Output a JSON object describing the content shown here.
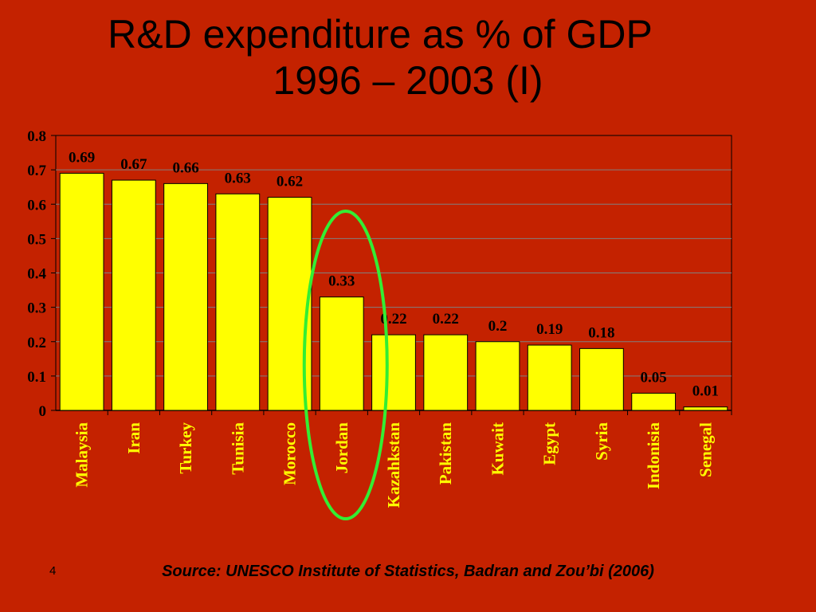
{
  "slide": {
    "title_line1": "R&D expenditure as % of GDP",
    "title_line2": "1996 – 2003  (I)",
    "slide_number": "4",
    "source": "Source: UNESCO Institute of Statistics, Badran and Zou’bi (2006)"
  },
  "colors": {
    "background": "#C42200",
    "bar_fill": "#FFFF00",
    "plot_area": "#C42200",
    "highlight_ellipse": "#33EE33",
    "category_label": "#FFFF00",
    "value_label": "#000000"
  },
  "chart_data": {
    "type": "bar",
    "title": "",
    "xlabel": "",
    "ylabel": "",
    "ylim": [
      0,
      0.8
    ],
    "yticks": [
      "0",
      "0.1",
      "0.2",
      "0.3",
      "0.4",
      "0.5",
      "0.6",
      "0.7",
      "0.8"
    ],
    "grid": true,
    "categories": [
      "Malaysia",
      "Iran",
      "Turkey",
      "Tunisia",
      "Morocco",
      "Jordan",
      "Kazahkstan",
      "Pakistan",
      "Kuwait",
      "Egypt",
      "Syria",
      "Indonisia",
      "Senegal"
    ],
    "values": [
      0.69,
      0.67,
      0.66,
      0.63,
      0.62,
      0.33,
      0.22,
      0.22,
      0.2,
      0.19,
      0.18,
      0.05,
      0.01
    ],
    "value_labels": [
      "0.69",
      "0.67",
      "0.66",
      "0.63",
      "0.62",
      "0.33",
      "0.22",
      "0.22",
      "0.2",
      "0.19",
      "0.18",
      "0.05",
      "0.01"
    ],
    "highlighted_category": "Jordan"
  }
}
